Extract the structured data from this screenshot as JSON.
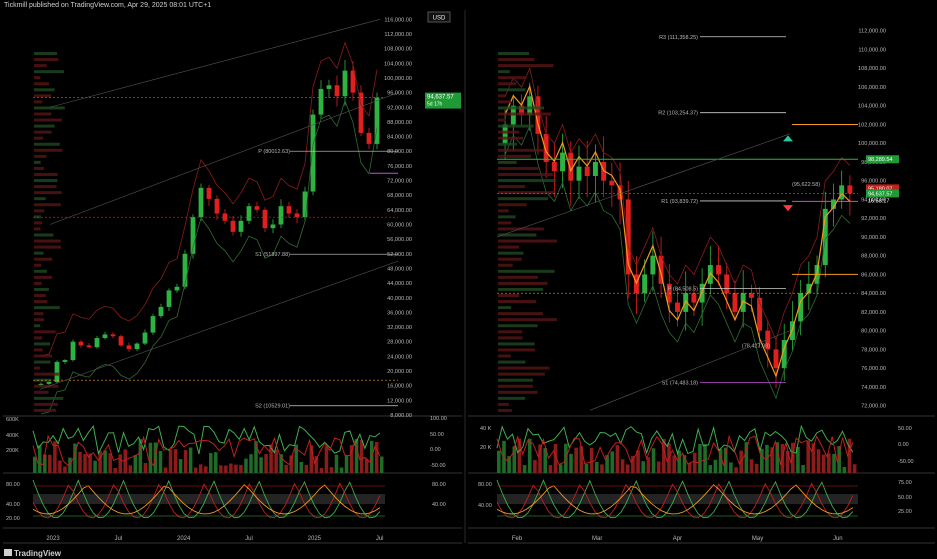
{
  "header": "Tickmill published on TradingView.com, Apr 29, 2025 08:01 UTC+1",
  "brand": "TradingView",
  "colors": {
    "up": "#2db342",
    "down": "#e0201e",
    "orange": "#f09a1e",
    "purple": "#c24fd6",
    "green_line": "#3fae4c",
    "red_dot": "#ff3b3b",
    "grid": "#1a1a1a"
  },
  "chart_data": [
    {
      "type": "candlestick",
      "panel": "left",
      "currency": "USD",
      "x_ticks": [
        "2023",
        "Jul",
        "2024",
        "Jul",
        "2025",
        "Jul"
      ],
      "y_ticks": [
        "116,000.00",
        "112,000.00",
        "108,000.00",
        "104,000.00",
        "100,000.00",
        "96,000.00",
        "92,000.00",
        "88,000.00",
        "84,000.00",
        "80,000.00",
        "76,000.00",
        "72,000.00",
        "68,000.00",
        "64,000.00",
        "60,000.00",
        "56,000.00",
        "52,000.00",
        "48,000.00",
        "44,000.00",
        "40,000.00",
        "36,000.00",
        "32,000.00",
        "28,000.00",
        "24,000.00",
        "20,000.00",
        "16,000.00",
        "12,000.00",
        "8,000.00"
      ],
      "ylim": [
        8000,
        118000
      ],
      "price_label": "94,637.57",
      "price_sub": "5d 17h",
      "pivots": [
        "P (80012.63)",
        "S1 (51897.88)",
        "S2 (10529.01)"
      ],
      "volume_ticks": [
        "600K",
        "400K",
        "200K"
      ],
      "osc1_ticks": [
        "100.00",
        "50.00",
        "0.00",
        "-50.00"
      ],
      "osc2_ticks": [
        "80.00",
        "40.00",
        "20.00"
      ],
      "close_approx": [
        16500,
        17000,
        22500,
        23000,
        28000,
        27000,
        26500,
        29000,
        30000,
        29500,
        27000,
        26000,
        27500,
        30500,
        35000,
        37500,
        42000,
        43000,
        52000,
        62000,
        70000,
        67000,
        63000,
        61000,
        58000,
        61000,
        65000,
        64000,
        59000,
        60000,
        65000,
        63000,
        62000,
        69000,
        90000,
        97000,
        98000,
        95000,
        102000,
        96000,
        85000,
        82000,
        94637
      ]
    },
    {
      "type": "candlestick",
      "panel": "right",
      "x_ticks": [
        "Feb",
        "Mar",
        "Apr",
        "May",
        "Jun"
      ],
      "y_ticks": [
        "112,000.00",
        "110,000.00",
        "108,000.00",
        "106,000.00",
        "104,000.00",
        "102,000.00",
        "100,000.00",
        "98,000.00",
        "96,000.00",
        "94,000.00",
        "92,000.00",
        "90,000.00",
        "88,000.00",
        "86,000.00",
        "84,000.00",
        "82,000.00",
        "80,000.00",
        "78,000.00",
        "76,000.00",
        "74,000.00",
        "72,000.00"
      ],
      "ylim": [
        71000,
        114000
      ],
      "pivots": [
        "R3 (111,358.25)",
        "R2 (103,254.37)",
        "R1 (93,839.72)",
        "P (84,508.5)",
        "S1 (74,483.18)",
        "(95,622.58)",
        "(78,427.08)"
      ],
      "price_labels": [
        "98,289.54",
        "95,180.07",
        "94,637.57",
        "16:58:17"
      ],
      "volume_ticks": [
        "40 K",
        "20 K"
      ],
      "osc1_ticks": [
        "50.00",
        "0.00",
        "-50.00"
      ],
      "osc2_ticks": [
        "80.00",
        "40.00",
        "75.00",
        "50.00",
        "25.00"
      ],
      "left_osc2_ticks": [
        "80.00",
        "40.00"
      ],
      "close_approx": [
        102000,
        104000,
        103000,
        105000,
        101000,
        98000,
        97000,
        99000,
        96000,
        97500,
        96500,
        98000,
        96000,
        95500,
        94000,
        86000,
        84000,
        86000,
        88000,
        85000,
        83000,
        82000,
        84000,
        83000,
        85000,
        87000,
        86000,
        84000,
        82000,
        84000,
        83500,
        80000,
        78000,
        76000,
        79000,
        81000,
        84000,
        85000,
        87000,
        93000,
        94000,
        95500,
        94637
      ]
    }
  ]
}
